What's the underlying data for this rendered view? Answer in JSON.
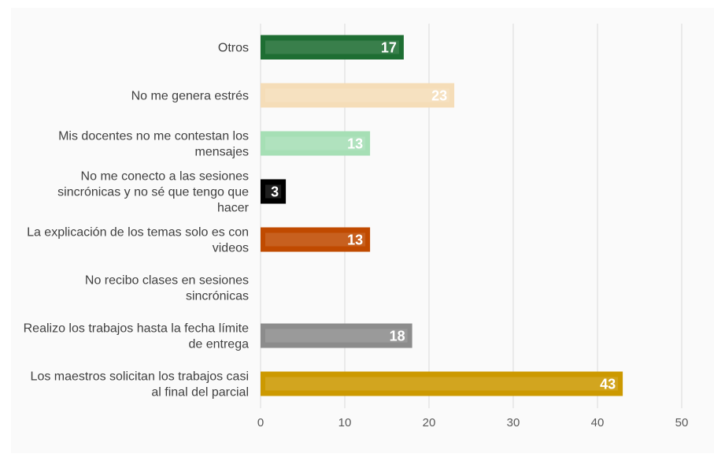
{
  "chart_data": {
    "type": "bar",
    "orientation": "horizontal",
    "categories": [
      "Otros",
      "No me genera estrés",
      "Mis docentes no me contestan los mensajes",
      "No me conecto a las sesiones sincrónicas y no sé que tengo que hacer",
      "La explicación de los temas solo es con videos",
      "No recibo clases en sesiones sincrónicas",
      "Realizo los trabajos hasta la fecha límite de entrega",
      "Los maestros solicitan los trabajos casi al final del parcial"
    ],
    "category_lines": [
      [
        "Otros"
      ],
      [
        "No me genera estrés"
      ],
      [
        "Mis docentes no me contestan los",
        "mensajes"
      ],
      [
        "No me conecto a las sesiones",
        "sincrónicas y no sé que tengo que",
        "hacer"
      ],
      [
        "La explicación de los temas solo es con",
        "videos"
      ],
      [
        "No recibo clases en sesiones",
        "sincrónicas"
      ],
      [
        "Realizo los trabajos hasta la fecha límite",
        "de entrega"
      ],
      [
        "Los maestros solicitan los trabajos casi",
        "al final del parcial"
      ]
    ],
    "values": [
      17,
      23,
      13,
      3,
      13,
      0,
      18,
      43
    ],
    "data_labels": [
      "17",
      "23",
      "13",
      "3",
      "13",
      "",
      "18",
      "43"
    ],
    "colors": [
      "#1e6e33",
      "#f5ddb8",
      "#a6dfb5",
      "#000000",
      "#c04a00",
      "#cccccc",
      "#8c8c8c",
      "#cc9900"
    ],
    "xlim": [
      0,
      50
    ],
    "xticks": [
      0,
      10,
      20,
      30,
      40,
      50
    ],
    "grid": true,
    "title": "",
    "xlabel": "",
    "ylabel": ""
  }
}
